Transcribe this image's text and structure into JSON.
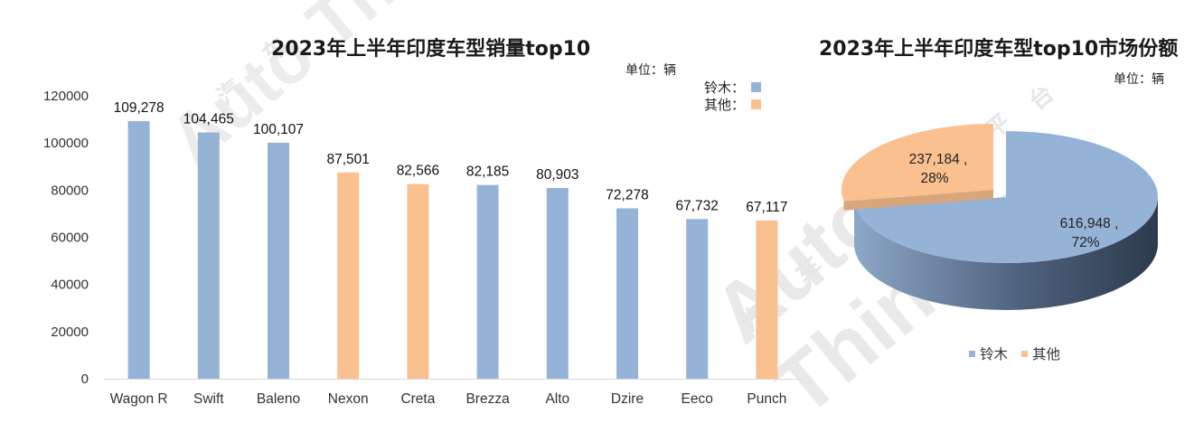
{
  "chart_data": [
    {
      "type": "bar",
      "title": "2023年上半年印度车型销量top10",
      "unit_label": "单位：辆",
      "categories": [
        "Wagon R",
        "Swift",
        "Baleno",
        "Nexon",
        "Creta",
        "Brezza",
        "Alto",
        "Dzire",
        "Eeco",
        "Punch"
      ],
      "values": [
        109278,
        104465,
        100107,
        87501,
        82566,
        82185,
        80903,
        72278,
        67732,
        67117
      ],
      "data_labels": [
        "109,278",
        "104,465",
        "100,107",
        "87,501",
        "82,566",
        "82,185",
        "80,903",
        "72,278",
        "67,732",
        "67,117"
      ],
      "groups": [
        "铃木",
        "铃木",
        "铃木",
        "其他",
        "其他",
        "铃木",
        "铃木",
        "铃木",
        "铃木",
        "其他"
      ],
      "legend": [
        {
          "name": "铃木",
          "color": "#95B3D7"
        },
        {
          "name": "其他",
          "color": "#FAC090"
        }
      ],
      "legend_position": "top-right",
      "y_ticks": [
        "0",
        "20000",
        "40000",
        "60000",
        "80000",
        "100000",
        "120000"
      ],
      "ylim": [
        0,
        120000
      ],
      "grid": false,
      "xlabel": "",
      "ylabel": ""
    },
    {
      "type": "pie",
      "title": "2023年上半年印度车型top10市场份额",
      "unit_label": "单位：辆",
      "style": "3d",
      "slices": [
        {
          "name": "铃木",
          "value": 616948,
          "percent": 72,
          "label_value": "616,948 ,",
          "label_percent": "72%",
          "color": "#95B3D7"
        },
        {
          "name": "其他",
          "value": 237184,
          "percent": 28,
          "label_value": "237,184 ,",
          "label_percent": "28%",
          "color": "#FAC090"
        }
      ],
      "legend_position": "bottom"
    }
  ],
  "watermark": {
    "brand": "Auto Thinker",
    "chars": [
      "汽",
      "车",
      "智",
      "库",
      "平",
      "台"
    ]
  }
}
